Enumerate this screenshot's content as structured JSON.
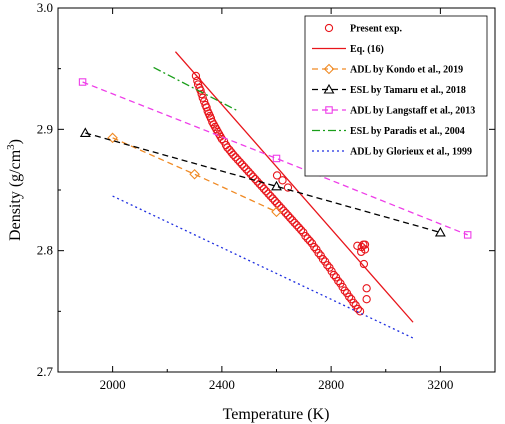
{
  "chart_data": {
    "type": "scatter",
    "title": "",
    "xlabel": "Temperature (K)",
    "ylabel_main": "Density (g/cm",
    "ylabel_sup": "3",
    "ylabel_close": ")",
    "xlim": [
      1800,
      3400
    ],
    "ylim": [
      2.7,
      3.0
    ],
    "xticks": [
      2000,
      2400,
      2800,
      3200
    ],
    "yticks": [
      2.7,
      2.8,
      2.9,
      3.0
    ],
    "xtick_labels": [
      "2000",
      "2400",
      "2800",
      "3200"
    ],
    "ytick_labels": [
      "2.7",
      "2.8",
      "2.9",
      "3.0"
    ],
    "grid": false,
    "legend_position": "top-right",
    "series": [
      {
        "name": "Present exp.",
        "kind": "markers",
        "marker": "circle-open",
        "color": "#e8151b",
        "x": [
          2305,
          2310,
          2313,
          2318,
          2322,
          2326,
          2330,
          2335,
          2340,
          2344,
          2348,
          2352,
          2356,
          2360,
          2365,
          2370,
          2375,
          2380,
          2385,
          2390,
          2395,
          2400,
          2408,
          2415,
          2420,
          2428,
          2435,
          2442,
          2450,
          2458,
          2466,
          2474,
          2482,
          2490,
          2498,
          2506,
          2514,
          2522,
          2530,
          2538,
          2546,
          2554,
          2562,
          2570,
          2578,
          2586,
          2594,
          2602,
          2610,
          2618,
          2626,
          2634,
          2642,
          2650,
          2658,
          2666,
          2674,
          2682,
          2690,
          2698,
          2706,
          2714,
          2722,
          2730,
          2738,
          2746,
          2754,
          2762,
          2770,
          2778,
          2786,
          2794,
          2802,
          2810,
          2818,
          2826,
          2834,
          2842,
          2850,
          2858,
          2866,
          2874,
          2882,
          2890,
          2898,
          2906,
          2912,
          2918,
          2924,
          2930,
          2602,
          2622,
          2642,
          2896,
          2910,
          2920,
          2924,
          2930
        ],
        "y": [
          2.944,
          2.94,
          2.937,
          2.934,
          2.932,
          2.929,
          2.926,
          2.923,
          2.92,
          2.918,
          2.915,
          2.913,
          2.911,
          2.909,
          2.906,
          2.904,
          2.902,
          2.9,
          2.898,
          2.896,
          2.894,
          2.892,
          2.89,
          2.887,
          2.885,
          2.883,
          2.881,
          2.879,
          2.877,
          2.875,
          2.873,
          2.871,
          2.869,
          2.867,
          2.865,
          2.863,
          2.861,
          2.859,
          2.857,
          2.855,
          2.853,
          2.851,
          2.849,
          2.847,
          2.845,
          2.843,
          2.841,
          2.839,
          2.837,
          2.835,
          2.833,
          2.831,
          2.829,
          2.827,
          2.825,
          2.823,
          2.821,
          2.819,
          2.817,
          2.815,
          2.812,
          2.81,
          2.808,
          2.806,
          2.803,
          2.801,
          2.798,
          2.796,
          2.793,
          2.791,
          2.788,
          2.786,
          2.783,
          2.78,
          2.778,
          2.775,
          2.773,
          2.77,
          2.767,
          2.765,
          2.762,
          2.76,
          2.757,
          2.755,
          2.752,
          2.75,
          2.803,
          2.805,
          2.801,
          2.769,
          2.862,
          2.858,
          2.852,
          2.804,
          2.799,
          2.789,
          2.805,
          2.76
        ]
      },
      {
        "name": "Eq. (16)",
        "kind": "line",
        "dash": "solid",
        "color": "#e8151b",
        "x": [
          2230,
          3100
        ],
        "y": [
          2.964,
          2.741
        ]
      },
      {
        "name": "ADL by Kondo et al., 2019",
        "kind": "line-markers",
        "marker": "diamond-open",
        "dash": "dash",
        "color": "#f08a24",
        "x": [
          2000,
          2300,
          2600
        ],
        "y": [
          2.893,
          2.863,
          2.832
        ]
      },
      {
        "name": "ESL by Tamaru et al., 2018",
        "kind": "line-markers",
        "marker": "triangle-open",
        "dash": "dash",
        "color": "#000000",
        "x": [
          1900,
          2600,
          3200
        ],
        "y": [
          2.897,
          2.853,
          2.815
        ]
      },
      {
        "name": "ADL by Langstaff et al., 2013",
        "kind": "line-markers",
        "marker": "square-open",
        "dash": "dash",
        "color": "#ee3de8",
        "x": [
          1890,
          2600,
          3300
        ],
        "y": [
          2.939,
          2.876,
          2.813
        ]
      },
      {
        "name": "ESL by Paradis et al., 2004",
        "kind": "line",
        "dash": "dashdot",
        "color": "#1a9e1a",
        "x": [
          2150,
          2460
        ],
        "y": [
          2.951,
          2.915
        ]
      },
      {
        "name": "ADL by Glorieux et al., 1999",
        "kind": "line",
        "dash": "dot",
        "color": "#1f2fe0",
        "x": [
          2000,
          3100
        ],
        "y": [
          2.845,
          2.728
        ]
      }
    ]
  }
}
